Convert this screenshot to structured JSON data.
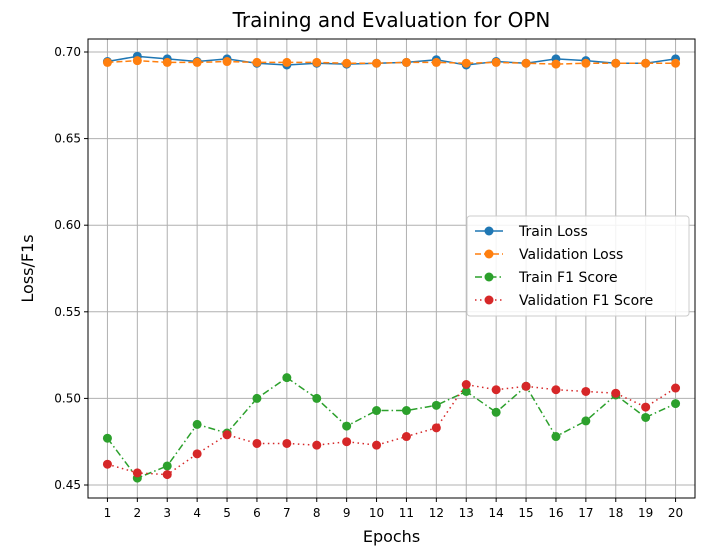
{
  "chart_data": {
    "type": "line",
    "title": "Training and Evaluation for OPN",
    "xlabel": "Epochs",
    "ylabel": "Loss/F1s",
    "x": [
      1,
      2,
      3,
      4,
      5,
      6,
      7,
      8,
      9,
      10,
      11,
      12,
      13,
      14,
      15,
      16,
      17,
      18,
      19,
      20
    ],
    "x_tick_labels": [
      "1",
      "2",
      "3",
      "4",
      "5",
      "6",
      "7",
      "8",
      "9",
      "10",
      "11",
      "12",
      "13",
      "14",
      "15",
      "16",
      "17",
      "18",
      "19",
      "20"
    ],
    "y_ticks": [
      0.45,
      0.5,
      0.55,
      0.6,
      0.65,
      0.7
    ],
    "y_tick_labels": [
      "0.45",
      "0.50",
      "0.55",
      "0.60",
      "0.65",
      "0.70"
    ],
    "xlim": [
      0.35,
      20.65
    ],
    "ylim": [
      0.4425,
      0.7075
    ],
    "grid": true,
    "legend_position": "center-right",
    "series": [
      {
        "name": "Train Loss",
        "color": "#1f77b4",
        "linestyle": "solid",
        "values": [
          0.6945,
          0.6975,
          0.696,
          0.6945,
          0.696,
          0.6935,
          0.6925,
          0.6935,
          0.693,
          0.6935,
          0.694,
          0.6955,
          0.6925,
          0.6945,
          0.6935,
          0.696,
          0.695,
          0.6935,
          0.6935,
          0.696
        ]
      },
      {
        "name": "Validation Loss",
        "color": "#ff7f0e",
        "linestyle": "dashed",
        "values": [
          0.694,
          0.695,
          0.694,
          0.694,
          0.6945,
          0.694,
          0.694,
          0.694,
          0.6935,
          0.6935,
          0.694,
          0.694,
          0.6935,
          0.694,
          0.6935,
          0.693,
          0.6935,
          0.6935,
          0.6935,
          0.6935
        ]
      },
      {
        "name": "Train F1 Score",
        "color": "#2ca02c",
        "linestyle": "dashdot",
        "values": [
          0.477,
          0.454,
          0.461,
          0.485,
          0.48,
          0.5,
          0.512,
          0.5,
          0.484,
          0.493,
          0.493,
          0.496,
          0.504,
          0.492,
          0.507,
          0.478,
          0.487,
          0.502,
          0.489,
          0.497
        ]
      },
      {
        "name": "Validation F1 Score",
        "color": "#d62728",
        "linestyle": "dotted",
        "values": [
          0.462,
          0.457,
          0.456,
          0.468,
          0.479,
          0.474,
          0.474,
          0.473,
          0.475,
          0.473,
          0.478,
          0.483,
          0.508,
          0.505,
          0.507,
          0.505,
          0.504,
          0.503,
          0.495,
          0.506
        ]
      }
    ]
  }
}
